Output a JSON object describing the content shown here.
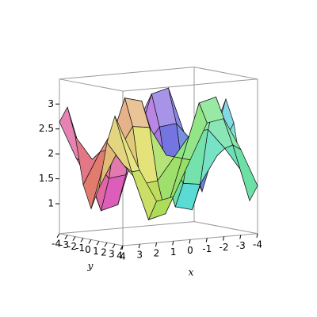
{
  "chart_data": {
    "type": "surface",
    "xlabel": "x",
    "ylabel": "y",
    "x": [
      -4,
      -3,
      -2,
      -1,
      0,
      1,
      2,
      3,
      4
    ],
    "y": [
      -4,
      -3,
      -2,
      -1,
      0,
      1,
      2,
      3,
      4
    ],
    "z": [
      [
        1.36,
        2.12,
        2.77,
        2.71,
        2,
        1.29,
        1.23,
        1.88,
        2.64
      ],
      [
        1.03,
        2.18,
        3.17,
        3.08,
        2,
        0.92,
        0.83,
        1.82,
        2.97
      ],
      [
        1.59,
        2.08,
        2.49,
        2.45,
        2,
        1.55,
        1.51,
        1.92,
        2.41
      ],
      [
        2.53,
        1.9,
        1.36,
        1.41,
        2,
        2.59,
        2.64,
        2.1,
        1.47
      ],
      [
        2.98,
        1.82,
        0.82,
        0.91,
        2,
        3.09,
        3.18,
        2.18,
        1.02
      ],
      [
        2.53,
        1.9,
        1.36,
        1.41,
        2,
        2.59,
        2.64,
        2.1,
        1.47
      ],
      [
        1.59,
        2.08,
        2.49,
        2.45,
        2,
        1.55,
        1.51,
        1.92,
        2.41
      ],
      [
        1.03,
        2.18,
        3.17,
        3.08,
        2,
        0.92,
        0.83,
        1.82,
        2.97
      ],
      [
        1.36,
        2.12,
        2.77,
        2.71,
        2,
        1.29,
        1.23,
        1.88,
        2.64
      ]
    ],
    "xlim": [
      -4,
      4
    ],
    "ylim": [
      -4,
      4
    ],
    "zlim": [
      0.4,
      3.5
    ],
    "xticks": [
      4,
      3,
      2,
      1,
      0,
      -1,
      -2,
      -3,
      -4
    ],
    "yticks": [
      -4,
      -3,
      -2,
      -1,
      0,
      1,
      2,
      3,
      4
    ],
    "zticks": [
      1,
      1.5,
      2,
      2.5,
      3
    ]
  }
}
